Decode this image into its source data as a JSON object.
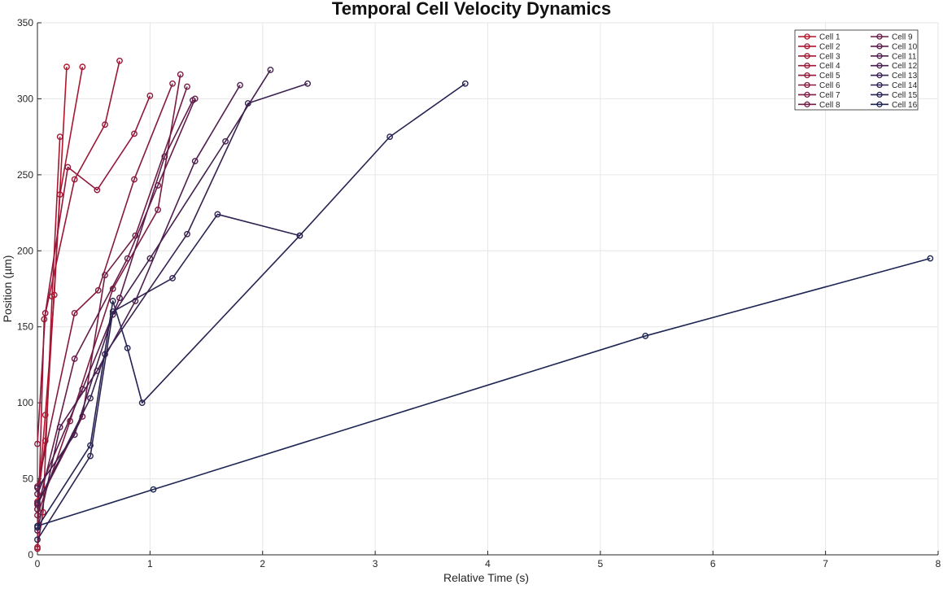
{
  "chart_data": {
    "type": "line",
    "title": "Temporal Cell Velocity Dynamics",
    "xlabel": "Relative Time (s)",
    "ylabel": "Position (µm)",
    "xlim": [
      0,
      8
    ],
    "ylim": [
      0,
      350
    ],
    "xticks": [
      0,
      1,
      2,
      3,
      4,
      5,
      6,
      7,
      8
    ],
    "yticks": [
      0,
      50,
      100,
      150,
      200,
      250,
      300,
      350
    ],
    "grid": true,
    "legend_position": "top-right",
    "series": [
      {
        "name": "Cell 1",
        "color": "#b5152b",
        "x": [
          0,
          0.07,
          0.15,
          0.26
        ],
        "y": [
          30,
          92,
          171,
          321
        ]
      },
      {
        "name": "Cell 2",
        "color": "#ad1530",
        "x": [
          0,
          0.07,
          0.2,
          0.4
        ],
        "y": [
          35,
          75,
          237,
          321
        ]
      },
      {
        "name": "Cell 3",
        "color": "#a51633",
        "x": [
          0,
          0.05,
          0.13,
          0.2
        ],
        "y": [
          5,
          28,
          170,
          275
        ]
      },
      {
        "name": "Cell 4",
        "color": "#9c1636",
        "x": [
          0,
          0.06,
          0.33,
          0.6,
          0.73
        ],
        "y": [
          4,
          155,
          247,
          283,
          325
        ]
      },
      {
        "name": "Cell 5",
        "color": "#92173a",
        "x": [
          0,
          0.07,
          0.27,
          0.53,
          0.86,
          1.0
        ],
        "y": [
          73,
          159,
          255,
          240,
          277,
          302
        ]
      },
      {
        "name": "Cell 6",
        "color": "#87183e",
        "x": [
          0,
          0.33,
          0.54,
          0.86,
          1.2
        ],
        "y": [
          45,
          159,
          174,
          247,
          310
        ]
      },
      {
        "name": "Cell 7",
        "color": "#7c1a42",
        "x": [
          0,
          0.29,
          0.67,
          1.07,
          1.27
        ],
        "y": [
          26,
          88,
          175,
          227,
          316
        ]
      },
      {
        "name": "Cell 8",
        "color": "#711b45",
        "x": [
          0,
          0.4,
          0.6,
          0.87,
          1.33
        ],
        "y": [
          33,
          91,
          184,
          210,
          308
        ]
      },
      {
        "name": "Cell 9",
        "color": "#661c48",
        "x": [
          0,
          0.33,
          0.8,
          1.07,
          1.4
        ],
        "y": [
          30,
          129,
          195,
          243,
          300
        ]
      },
      {
        "name": "Cell 10",
        "color": "#5b1d4b",
        "x": [
          0,
          0.4,
          0.73,
          1.13,
          1.38
        ],
        "y": [
          40,
          109,
          169,
          262,
          299
        ]
      },
      {
        "name": "Cell 11",
        "color": "#4f1e4d",
        "x": [
          0,
          0.2,
          0.53,
          0.87,
          1.4,
          1.8
        ],
        "y": [
          16,
          84,
          121,
          167,
          259,
          309
        ]
      },
      {
        "name": "Cell 12",
        "color": "#441f4e",
        "x": [
          0,
          0.33,
          0.67,
          1.0,
          1.67,
          2.07
        ],
        "y": [
          44,
          79,
          158,
          195,
          272,
          319
        ]
      },
      {
        "name": "Cell 13",
        "color": "#392150",
        "x": [
          0,
          0.47,
          0.6,
          1.33,
          1.87,
          2.4
        ],
        "y": [
          34,
          103,
          132,
          211,
          297,
          310
        ]
      },
      {
        "name": "Cell 14",
        "color": "#2f2251",
        "x": [
          0,
          0.47,
          0.67,
          1.2,
          1.6,
          2.33
        ],
        "y": [
          10,
          65,
          160,
          182,
          224,
          210
        ]
      },
      {
        "name": "Cell 15",
        "color": "#252352",
        "x": [
          0,
          0.47,
          0.67,
          0.8,
          0.93,
          2.33,
          3.13,
          3.8
        ],
        "y": [
          18,
          72,
          167,
          136,
          100,
          210,
          275,
          310
        ]
      },
      {
        "name": "Cell 16",
        "color": "#1c2452",
        "x": [
          0,
          1.03,
          5.4,
          7.93
        ],
        "y": [
          19,
          43,
          144,
          195
        ]
      }
    ]
  }
}
